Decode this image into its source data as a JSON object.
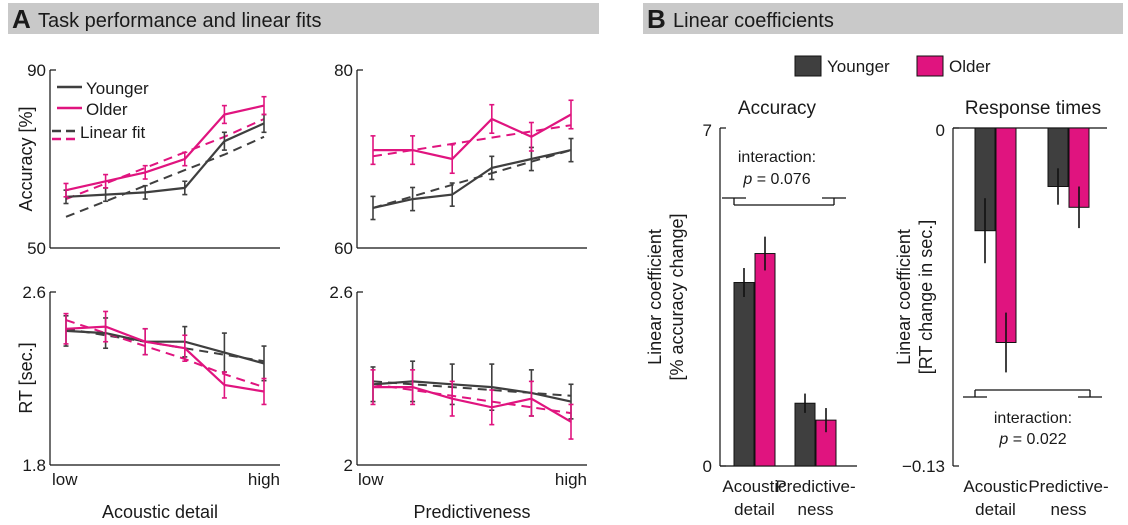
{
  "panels": {
    "a": {
      "letter": "A",
      "title": "Task performance and linear fits"
    },
    "b": {
      "letter": "B",
      "title": "Linear coefficients"
    }
  },
  "legend_a": {
    "younger": "Younger",
    "older": "Older",
    "fit": "Linear fit"
  },
  "legend_b": {
    "younger": "Younger",
    "older": "Older"
  },
  "colors": {
    "younger": "#3f3f3f",
    "older": "#e0147f",
    "header_bg": "#c9c9c9"
  },
  "xaxis": {
    "low": "low",
    "high": "high",
    "acoustic": "Acoustic detail",
    "predictive": "Predictiveness"
  },
  "chart_data": [
    {
      "id": "acc_acoustic",
      "type": "line",
      "ylabel": "Accuracy [%]",
      "ylim": [
        50,
        90
      ],
      "yticks": [
        "90",
        "50"
      ],
      "x": [
        1,
        2,
        3,
        4,
        5,
        6
      ],
      "series": [
        {
          "name": "Younger",
          "values": [
            61.5,
            62,
            62.5,
            63.5,
            74,
            78
          ],
          "err": [
            1.5,
            1.5,
            1.5,
            1.5,
            2,
            2
          ]
        },
        {
          "name": "Older",
          "values": [
            63,
            65,
            67,
            70,
            80,
            82
          ],
          "err": [
            1.5,
            1.5,
            1.5,
            1.5,
            2,
            2
          ]
        }
      ],
      "fits": [
        {
          "name": "Younger",
          "values": [
            57,
            60.5,
            64,
            67.5,
            71,
            75
          ]
        },
        {
          "name": "Older",
          "values": [
            61,
            64.5,
            68,
            71.5,
            75,
            79
          ]
        }
      ]
    },
    {
      "id": "acc_predictive",
      "type": "line",
      "ylim": [
        60,
        80
      ],
      "yticks": [
        "80",
        "60"
      ],
      "x": [
        1,
        2,
        3,
        4,
        5,
        6
      ],
      "series": [
        {
          "name": "Younger",
          "values": [
            64.5,
            65.5,
            66,
            69,
            70,
            71
          ],
          "err": [
            1.3,
            1.3,
            1.3,
            1.3,
            1.3,
            1.3
          ]
        },
        {
          "name": "Older",
          "values": [
            71,
            71,
            70,
            74.5,
            72.5,
            75
          ],
          "err": [
            1.6,
            1.6,
            1.6,
            1.6,
            1.6,
            1.6
          ]
        }
      ],
      "fits": [
        {
          "name": "Younger",
          "values": [
            64.5,
            65.8,
            67.1,
            68.4,
            69.7,
            71
          ]
        },
        {
          "name": "Older",
          "values": [
            70.3,
            71,
            71.7,
            72.4,
            73.1,
            73.8
          ]
        }
      ]
    },
    {
      "id": "rt_acoustic",
      "type": "line",
      "ylabel": "RT [sec.]",
      "ylim": [
        1.8,
        2.6
      ],
      "yticks": [
        "2.6",
        "1.8"
      ],
      "x": [
        1,
        2,
        3,
        4,
        5,
        6
      ],
      "series": [
        {
          "name": "Younger",
          "values": [
            2.42,
            2.41,
            2.37,
            2.37,
            2.32,
            2.27
          ],
          "err": [
            0.07,
            0.07,
            0.06,
            0.07,
            0.09,
            0.08
          ]
        },
        {
          "name": "Older",
          "values": [
            2.43,
            2.44,
            2.37,
            2.34,
            2.17,
            2.14
          ],
          "err": [
            0.07,
            0.07,
            0.06,
            0.06,
            0.06,
            0.06
          ]
        }
      ],
      "fits": [
        {
          "name": "Younger",
          "values": [
            2.43,
            2.4,
            2.37,
            2.34,
            2.31,
            2.28
          ]
        },
        {
          "name": "Older",
          "values": [
            2.47,
            2.41,
            2.35,
            2.29,
            2.22,
            2.16
          ]
        }
      ]
    },
    {
      "id": "rt_predictive",
      "type": "line",
      "ylim": [
        2.0,
        2.6
      ],
      "yticks": [
        "2.6",
        "2"
      ],
      "x": [
        1,
        2,
        3,
        4,
        5,
        6
      ],
      "series": [
        {
          "name": "Younger",
          "values": [
            2.28,
            2.29,
            2.28,
            2.27,
            2.25,
            2.22
          ],
          "err": [
            0.06,
            0.07,
            0.07,
            0.08,
            0.08,
            0.06
          ]
        },
        {
          "name": "Older",
          "values": [
            2.27,
            2.27,
            2.23,
            2.2,
            2.23,
            2.15
          ],
          "err": [
            0.06,
            0.06,
            0.06,
            0.06,
            0.06,
            0.06
          ]
        }
      ],
      "fits": [
        {
          "name": "Younger",
          "values": [
            2.29,
            2.28,
            2.27,
            2.26,
            2.25,
            2.24
          ]
        },
        {
          "name": "Older",
          "values": [
            2.28,
            2.26,
            2.24,
            2.22,
            2.2,
            2.18
          ]
        }
      ]
    },
    {
      "id": "coef_accuracy",
      "type": "bar",
      "title": "Accuracy",
      "ylabel": "Linear coefficient",
      "ylabel2": "[% accuracy change]",
      "ylim": [
        0,
        7
      ],
      "yticks": [
        "7",
        "0"
      ],
      "categories": [
        "Acoustic detail",
        "Predictiveness"
      ],
      "category_lines": [
        [
          "Acoustic",
          "detail"
        ],
        [
          "Predictive-",
          "ness"
        ]
      ],
      "series": [
        {
          "name": "Younger",
          "values": [
            3.8,
            1.3
          ],
          "err": [
            0.3,
            0.2
          ]
        },
        {
          "name": "Older",
          "values": [
            4.4,
            0.95
          ],
          "err": [
            0.35,
            0.25
          ]
        }
      ],
      "annotation": {
        "line1": "interaction:",
        "p": "p",
        "eq": " = 0.076"
      }
    },
    {
      "id": "coef_rt",
      "type": "bar",
      "title": "Response times",
      "ylabel": "Linear coefficient",
      "ylabel2": "[RT change in sec.]",
      "ylim": [
        -0.13,
        0
      ],
      "yticks": [
        "0",
        "−0.13"
      ],
      "categories": [
        "Acoustic detail",
        "Predictiveness"
      ],
      "category_lines": [
        [
          "Acoustic",
          "detail"
        ],
        [
          "Predictive-",
          "ness"
        ]
      ],
      "series": [
        {
          "name": "Younger",
          "values": [
            -0.0395,
            -0.0225
          ],
          "err": [
            0.0125,
            0.007
          ]
        },
        {
          "name": "Older",
          "values": [
            -0.0825,
            -0.0305
          ],
          "err": [
            0.0115,
            0.008
          ]
        }
      ],
      "annotation": {
        "line1": "interaction:",
        "p": "p",
        "eq": " = 0.022"
      }
    }
  ]
}
